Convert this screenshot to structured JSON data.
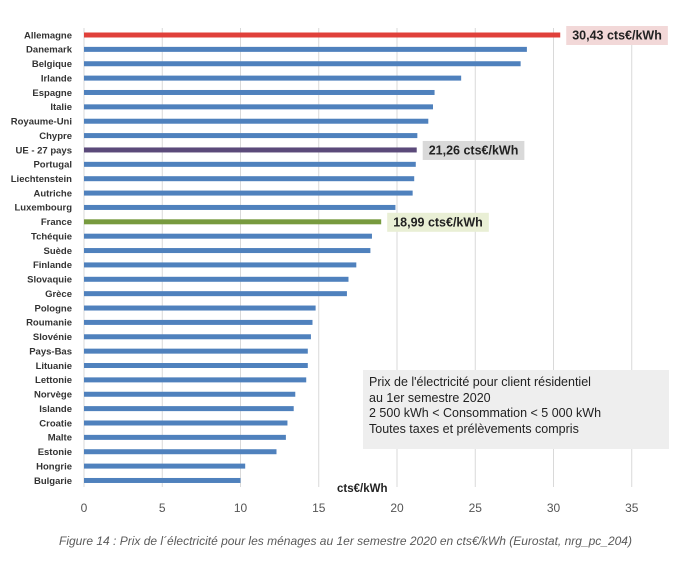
{
  "chart_data": {
    "type": "bar",
    "orientation": "horizontal",
    "xlabel": "cts€/kWh",
    "xlim": [
      0,
      35
    ],
    "xticks": [
      0,
      5,
      10,
      15,
      20,
      25,
      30,
      35
    ],
    "grid": true,
    "categories": [
      "Allemagne",
      "Danemark",
      "Belgique",
      "Irlande",
      "Espagne",
      "Italie",
      "Royaume-Uni",
      "Chypre",
      "UE - 27 pays",
      "Portugal",
      "Liechtenstein",
      "Autriche",
      "Luxembourg",
      "France",
      "Tchéquie",
      "Suède",
      "Finlande",
      "Slovaquie",
      "Grèce",
      "Pologne",
      "Roumanie",
      "Slovénie",
      "Pays-Bas",
      "Lituanie",
      "Lettonie",
      "Norvège",
      "Islande",
      "Croatie",
      "Malte",
      "Estonie",
      "Hongrie",
      "Bulgarie"
    ],
    "values": [
      30.43,
      28.3,
      27.9,
      24.1,
      22.4,
      22.3,
      22.0,
      21.3,
      21.26,
      21.2,
      21.1,
      21.0,
      19.9,
      18.99,
      18.4,
      18.3,
      17.4,
      16.9,
      16.8,
      14.8,
      14.6,
      14.5,
      14.3,
      14.3,
      14.2,
      13.5,
      13.4,
      13.0,
      12.9,
      12.3,
      10.3,
      10.0
    ],
    "colors": {
      "default": "#4f81bd",
      "Allemagne": "#e0403a",
      "UE - 27 pays": "#5b4a7a",
      "France": "#779a3e"
    },
    "callouts": [
      {
        "category": "Allemagne",
        "text": "30,43 cts€/kWh",
        "bg": "#f2d8d8"
      },
      {
        "category": "UE - 27 pays",
        "text": "21,26 cts€/kWh",
        "bg": "#d9d9d9"
      },
      {
        "category": "France",
        "text": "18,99 cts€/kWh",
        "bg": "#e9efd5"
      }
    ],
    "info_box": [
      "Prix de l'électricité pour client résidentiel",
      "au 1er semestre 2020",
      "2 500 kWh < Consommation < 5 000 kWh",
      "Toutes taxes et prélèvements compris"
    ]
  },
  "caption": "Figure 14 : Prix de l´électricité pour les ménages au 1er semestre 2020 en cts€/kWh (Eurostat, nrg_pc_204)"
}
